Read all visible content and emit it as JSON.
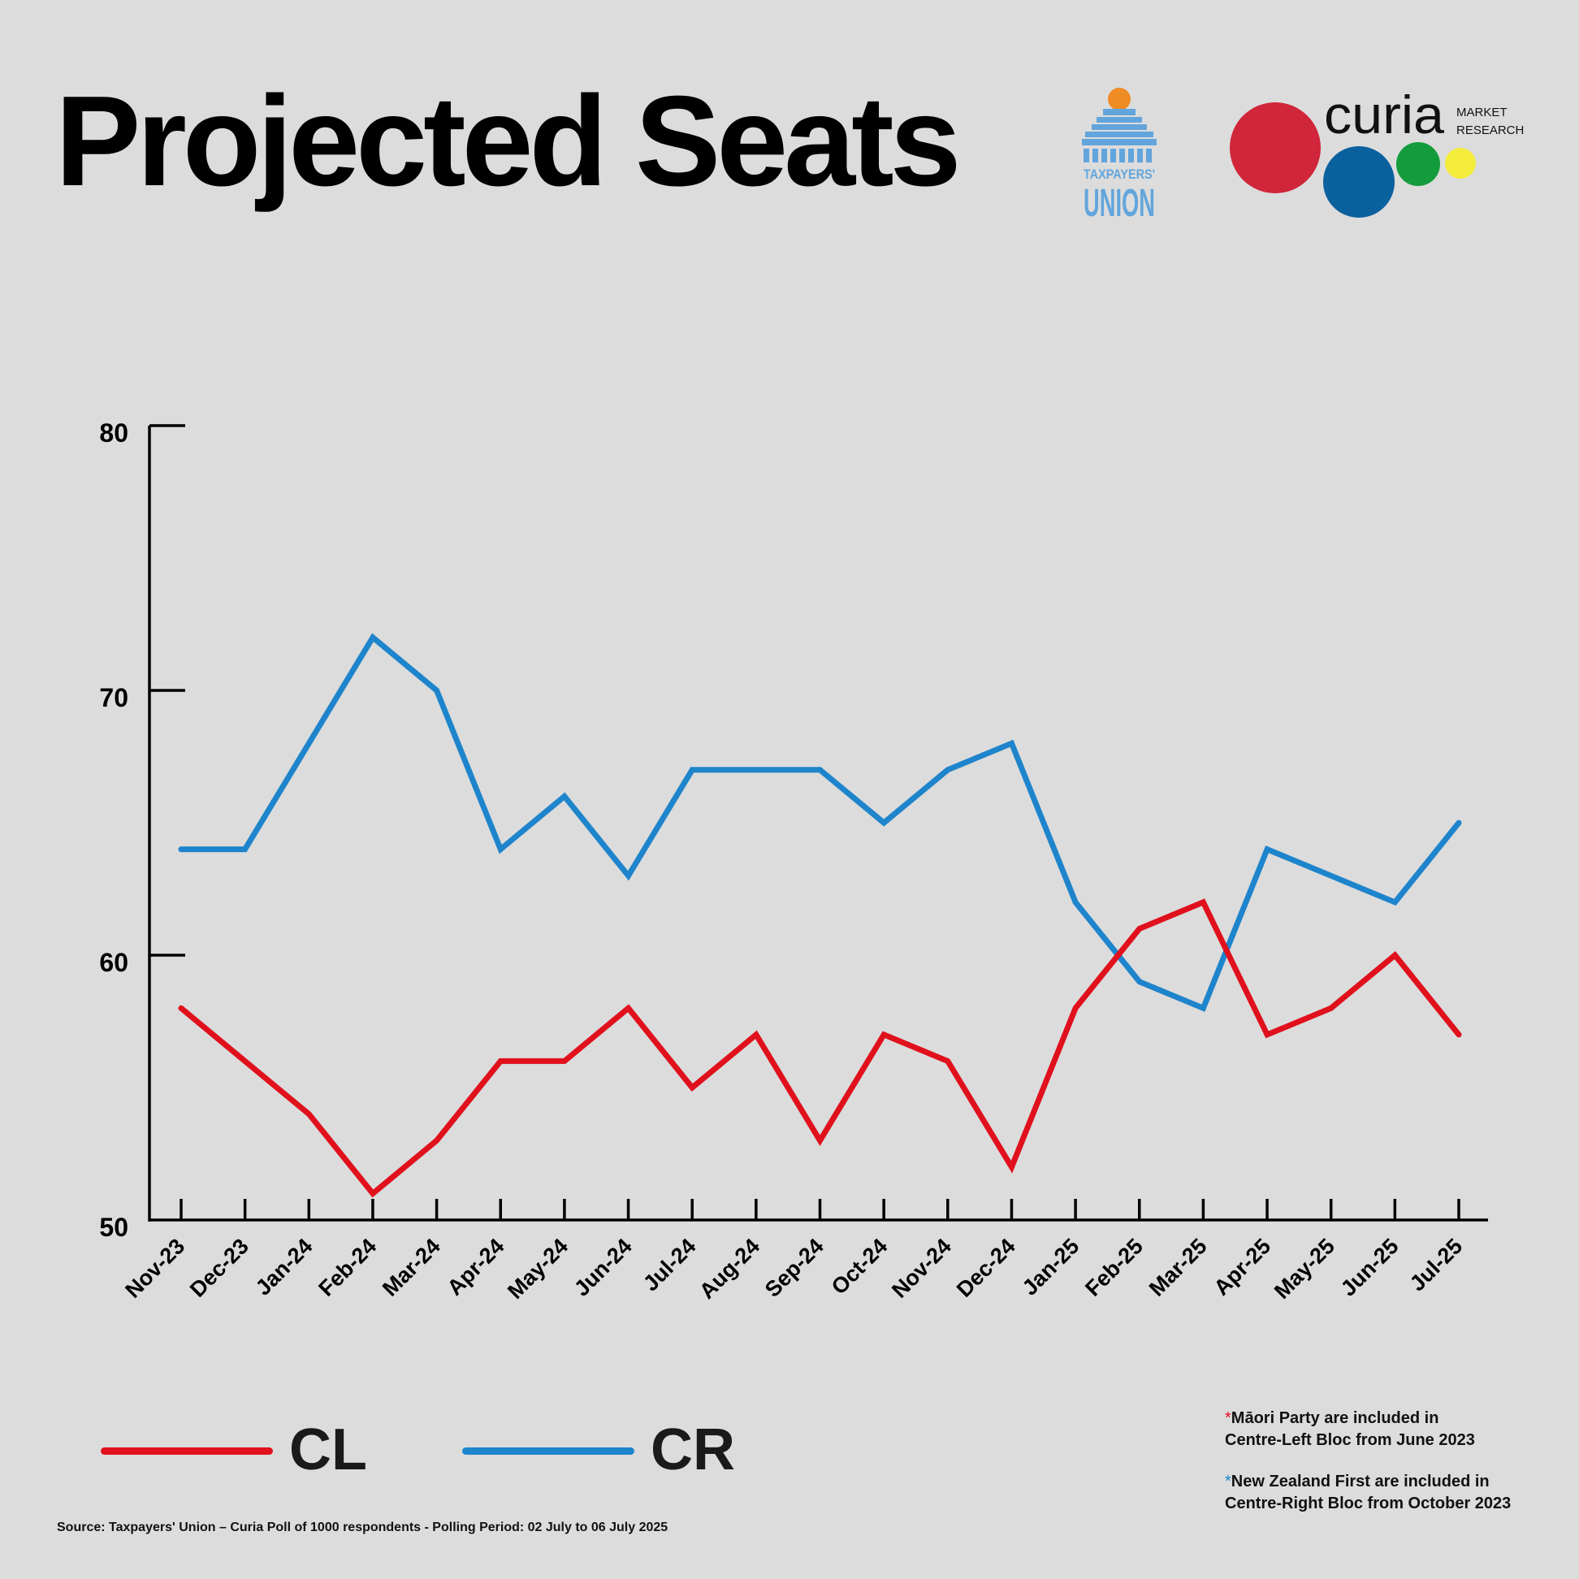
{
  "title": "Projected Seats",
  "logos": {
    "taxpayers_line1": "TAXPAYERS'",
    "taxpayers_line2": "UNION",
    "curia_word": "curia",
    "curia_sub1": "MARKET",
    "curia_sub2": "RESEARCH"
  },
  "colors": {
    "CL": "#e0101c",
    "CR": "#1e84cc",
    "taxpayers_logo": "#62a5dc",
    "taxpayers_dome": "#f08c24",
    "curia_red": "#d0253a",
    "curia_blue": "#0b619e",
    "curia_green": "#149c3c",
    "curia_yellow": "#f4ec3a"
  },
  "chart_data": {
    "type": "line",
    "title": "Projected Seats",
    "xlabel": "",
    "ylabel": "",
    "ylim": [
      50,
      80
    ],
    "yticks": [
      50,
      60,
      70,
      80
    ],
    "grid": false,
    "legend_position": "bottom-left",
    "categories": [
      "Nov-23",
      "Dec-23",
      "Jan-24",
      "Feb-24",
      "Mar-24",
      "Apr-24",
      "May-24",
      "Jun-24",
      "Jul-24",
      "Aug-24",
      "Sep-24",
      "Oct-24",
      "Nov-24",
      "Dec-24",
      "Jan-25",
      "Feb-25",
      "Mar-25",
      "Apr-25",
      "May-25",
      "Jun-25",
      "Jul-25"
    ],
    "series": [
      {
        "name": "CL",
        "color": "#e0101c",
        "values": [
          58,
          56,
          54,
          51,
          53,
          56,
          56,
          58,
          55,
          57,
          53,
          57,
          56,
          52,
          58,
          61,
          62,
          57,
          58,
          60,
          57
        ]
      },
      {
        "name": "CR",
        "color": "#1e84cc",
        "values": [
          64,
          64,
          68,
          72,
          70,
          64,
          66,
          63,
          67,
          67,
          67,
          65,
          67,
          68,
          62,
          59,
          58,
          64,
          63,
          62,
          65
        ]
      }
    ]
  },
  "notes": [
    {
      "star": "*",
      "star_color": "#e0101c",
      "line1": "Māori Party are included in",
      "line2": "Centre-Left Bloc from June 2023"
    },
    {
      "star": "*",
      "star_color": "#1e84cc",
      "line1": "New Zealand First are included in",
      "line2": "Centre-Right Bloc from October 2023"
    }
  ],
  "source": "Source: Taxpayers' Union – Curia Poll of 1000 respondents -  Polling Period: 02 July to 06 July 2025"
}
